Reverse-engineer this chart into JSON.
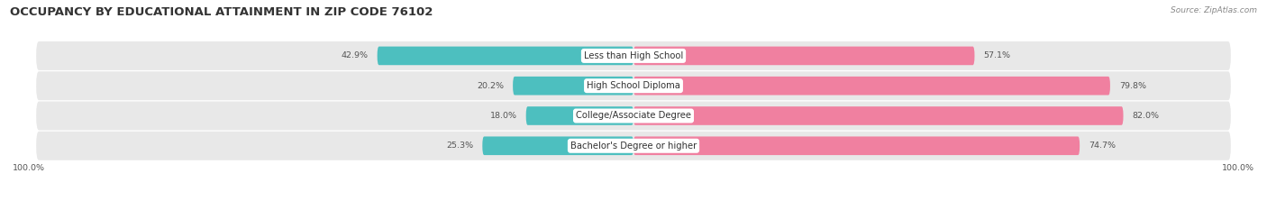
{
  "title": "OCCUPANCY BY EDUCATIONAL ATTAINMENT IN ZIP CODE 76102",
  "source": "Source: ZipAtlas.com",
  "categories": [
    "Less than High School",
    "High School Diploma",
    "College/Associate Degree",
    "Bachelor's Degree or higher"
  ],
  "owner_pct": [
    42.9,
    20.2,
    18.0,
    25.3
  ],
  "renter_pct": [
    57.1,
    79.8,
    82.0,
    74.7
  ],
  "owner_color": "#4dbfbf",
  "renter_color": "#f080a0",
  "bg_color": "#ffffff",
  "row_bg_color": "#e8e8e8",
  "title_fontsize": 9.5,
  "label_fontsize": 7.2,
  "annotation_fontsize": 6.8,
  "source_fontsize": 6.5,
  "axis_label_left": "100.0%",
  "axis_label_right": "100.0%"
}
